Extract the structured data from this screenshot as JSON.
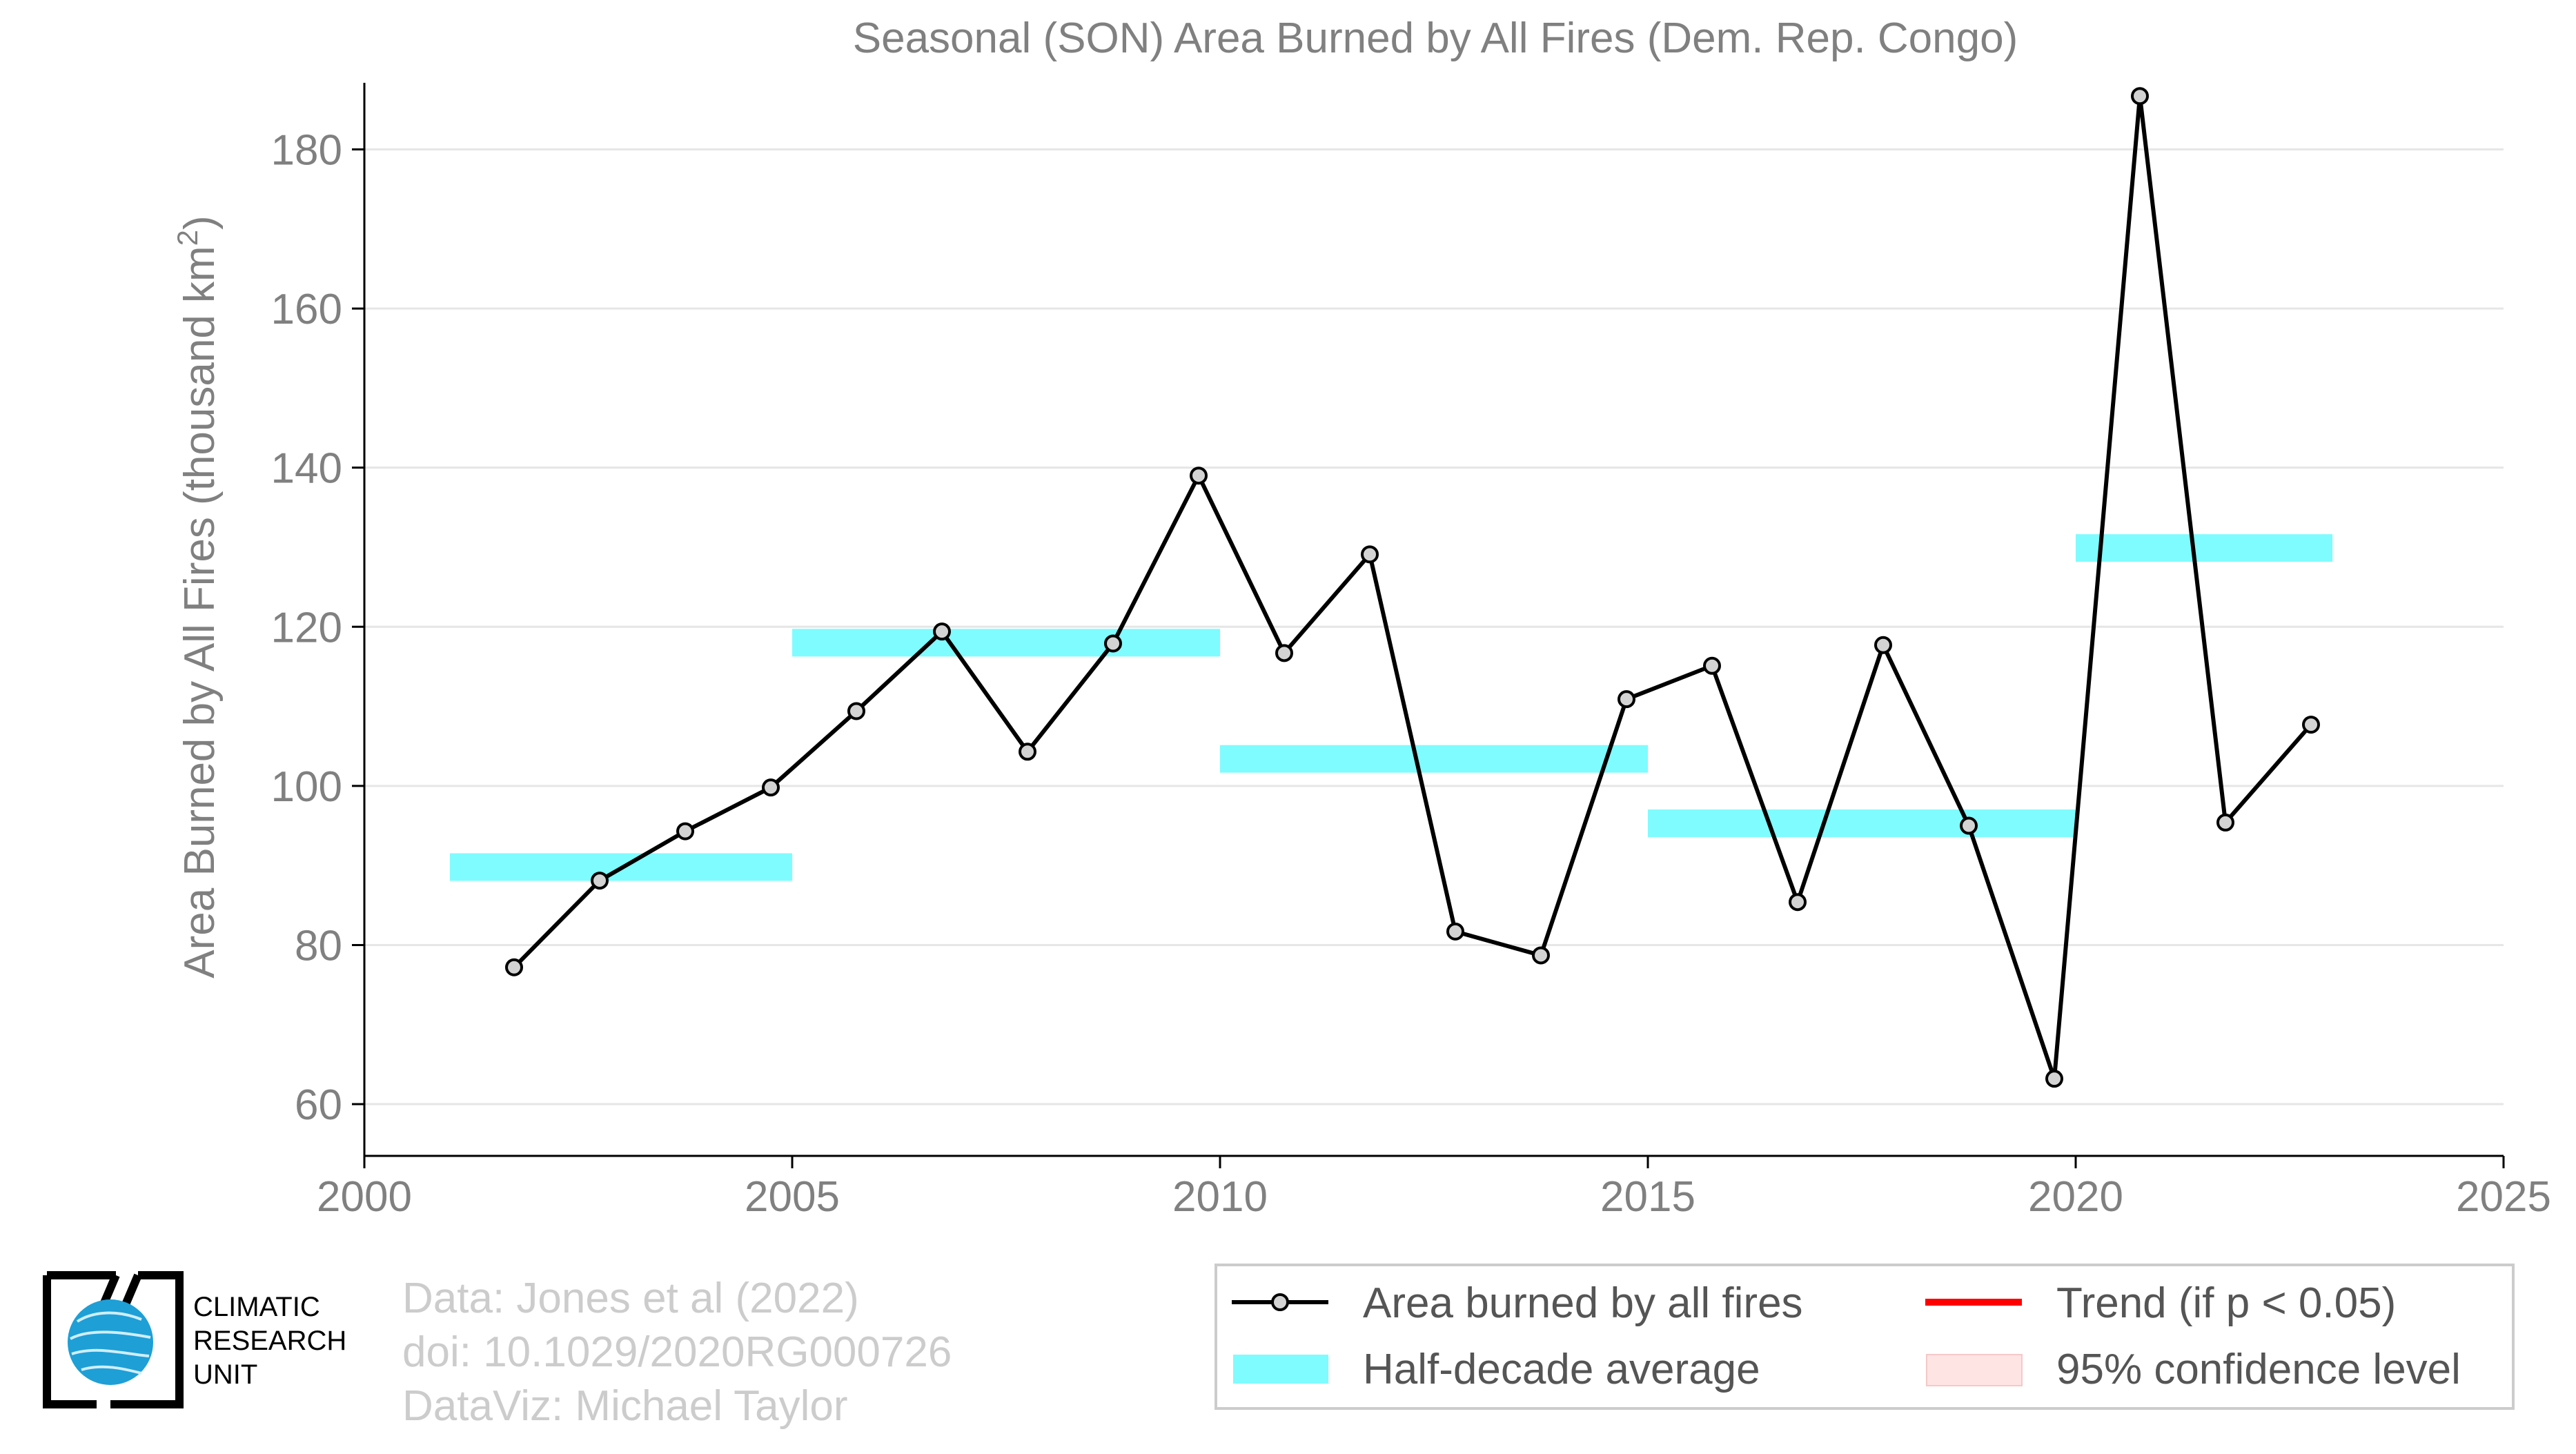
{
  "chart_data": {
    "type": "line",
    "title": "Seasonal (SON) Area Burned by All Fires (Dem. Rep. Congo)",
    "ylabel": "Area Burned by All Fires (thousand km",
    "ylabel_sup": "2",
    "ylabel_close": ")",
    "xlabel": "",
    "xlim": [
      2000,
      2025
    ],
    "ylim": [
      53.5,
      187.5
    ],
    "x_ticks": [
      2000,
      2005,
      2010,
      2015,
      2020,
      2025
    ],
    "y_ticks": [
      60,
      80,
      100,
      120,
      140,
      160,
      180
    ],
    "grid": "horizontal",
    "series": [
      {
        "name": "Area burned by all fires",
        "color": "#000000",
        "marker_fill": "#d3d3d3",
        "x": [
          2001.75,
          2002.75,
          2003.75,
          2004.75,
          2005.75,
          2006.75,
          2007.75,
          2008.75,
          2009.75,
          2010.75,
          2011.75,
          2012.75,
          2013.75,
          2014.75,
          2015.75,
          2016.75,
          2017.75,
          2018.75,
          2019.75,
          2020.75,
          2021.75,
          2022.75
        ],
        "y": [
          77.2,
          88.1,
          94.3,
          99.8,
          109.4,
          119.4,
          104.3,
          117.9,
          139.0,
          116.7,
          129.1,
          81.7,
          78.7,
          110.9,
          115.1,
          85.4,
          117.7,
          95.0,
          63.2,
          186.7,
          95.4,
          107.7
        ]
      }
    ],
    "half_decade_average": {
      "name": "Half-decade average",
      "color": "#7ffcff",
      "segments": [
        {
          "x0": 2001,
          "x1": 2005,
          "y": 89.8
        },
        {
          "x0": 2005,
          "x1": 2010,
          "y": 118.0
        },
        {
          "x0": 2010,
          "x1": 2015,
          "y": 103.4
        },
        {
          "x0": 2015,
          "x1": 2020,
          "y": 95.3
        },
        {
          "x0": 2020,
          "x1": 2023,
          "y": 129.9
        }
      ]
    },
    "legend": {
      "placement": "bottom-right",
      "items": [
        {
          "label": "Area burned by all fires",
          "kind": "line-marker",
          "color": "#000000"
        },
        {
          "label": "Trend (if p < 0.05)",
          "kind": "line",
          "color": "#ff0000"
        },
        {
          "label": "Half-decade average",
          "kind": "band",
          "color": "#7ffcff"
        },
        {
          "label": "95% confidence level",
          "kind": "patch",
          "color": "#ffe4e4"
        }
      ]
    }
  },
  "credits": {
    "line1": "Data: Jones et al (2022)",
    "line2": "doi: 10.1029/2020RG000726",
    "line3": "DataViz: Michael Taylor"
  },
  "logo": {
    "line1": "CLIMATIC",
    "line2": "RESEARCH",
    "line3": "UNIT"
  }
}
